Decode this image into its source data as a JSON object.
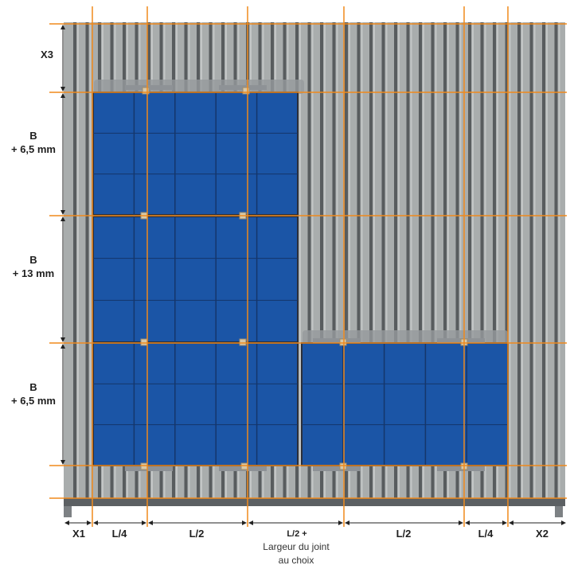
{
  "labels": {
    "vertical": {
      "x3": "X3",
      "b1_line1": "B",
      "b1_line2": "+ 6,5 mm",
      "b2_line1": "B",
      "b2_line2": "+ 13 mm",
      "b3_line1": "B",
      "b3_line2": "+ 6,5 mm"
    },
    "horizontal": {
      "x1": "X1",
      "l4_left": "L/4",
      "l2_a": "L/2",
      "l2_joint": "L/2 +",
      "l2_b": "L/2",
      "l4_right": "L/4",
      "x2": "X2",
      "joint_line1": "Largeur du joint",
      "joint_line2": "au choix"
    }
  },
  "colors": {
    "roof": "#a9adad",
    "rib": "#4a4d50",
    "panel": "#1b55a6",
    "panel_frame": "#2b2f3a",
    "guide": "#f08a1c",
    "bracket": "#8e9296",
    "clamp": "#d9c9a8",
    "dimension": "#222222"
  }
}
